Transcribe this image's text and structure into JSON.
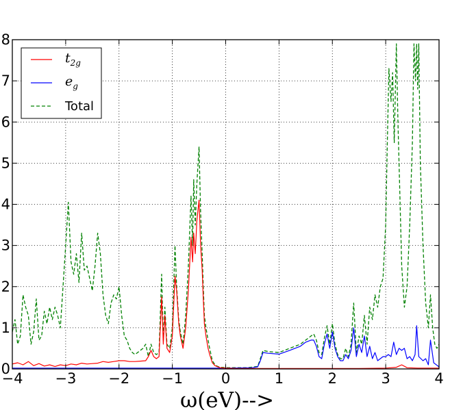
{
  "chart_data": {
    "type": "line",
    "title": "",
    "xlabel": "ω(eV)-->",
    "ylabel": "",
    "xlim": [
      -4,
      4
    ],
    "ylim": [
      0,
      8
    ],
    "xticks": [
      -4,
      -3,
      -2,
      -1,
      0,
      1,
      2,
      3,
      4
    ],
    "yticks": [
      0,
      1,
      2,
      3,
      4,
      5,
      6,
      7,
      8
    ],
    "xtick_labels": [
      "−4",
      "−3",
      "−2",
      "−1",
      "0",
      "1",
      "2",
      "3",
      "4"
    ],
    "ytick_labels": [
      "0",
      "1",
      "2",
      "3",
      "4",
      "5",
      "6",
      "7",
      "8"
    ],
    "grid": true,
    "legend_position": "top-left",
    "series": [
      {
        "name": "t2g",
        "label_main": "t",
        "label_sub": "2g",
        "color": "#ff0000",
        "style": "solid",
        "x": [
          -4.0,
          -3.9,
          -3.8,
          -3.7,
          -3.6,
          -3.5,
          -3.4,
          -3.3,
          -3.2,
          -3.1,
          -3.0,
          -2.9,
          -2.8,
          -2.7,
          -2.6,
          -2.5,
          -2.4,
          -2.3,
          -2.2,
          -2.1,
          -2.0,
          -1.9,
          -1.8,
          -1.7,
          -1.6,
          -1.5,
          -1.45,
          -1.4,
          -1.35,
          -1.3,
          -1.25,
          -1.2,
          -1.17,
          -1.14,
          -1.1,
          -1.05,
          -1.0,
          -0.95,
          -0.92,
          -0.88,
          -0.85,
          -0.8,
          -0.75,
          -0.7,
          -0.65,
          -0.62,
          -0.6,
          -0.57,
          -0.54,
          -0.5,
          -0.47,
          -0.44,
          -0.42,
          -0.4,
          -0.37,
          -0.33,
          -0.3,
          -0.25,
          -0.2,
          -0.15,
          -0.1,
          0.0,
          0.2,
          0.4,
          0.6,
          0.8,
          1.0,
          1.5,
          2.0,
          2.5,
          3.0,
          3.2,
          3.3,
          3.4,
          3.6,
          4.0
        ],
        "y": [
          0.12,
          0.15,
          0.1,
          0.18,
          0.08,
          0.13,
          0.07,
          0.1,
          0.06,
          0.1,
          0.08,
          0.12,
          0.1,
          0.14,
          0.12,
          0.13,
          0.14,
          0.18,
          0.16,
          0.18,
          0.2,
          0.2,
          0.18,
          0.18,
          0.19,
          0.2,
          0.3,
          0.45,
          0.3,
          0.25,
          0.3,
          1.75,
          0.6,
          1.3,
          0.5,
          0.4,
          0.8,
          2.25,
          1.9,
          1.1,
          0.8,
          0.5,
          1.0,
          1.9,
          3.2,
          2.6,
          3.3,
          2.8,
          3.6,
          4.1,
          3.0,
          2.4,
          1.7,
          1.1,
          0.8,
          0.5,
          0.35,
          0.15,
          0.08,
          0.05,
          0.03,
          0.02,
          0.01,
          0.01,
          0.01,
          0.01,
          0.01,
          0.01,
          0.01,
          0.01,
          0.02,
          0.04,
          0.1,
          0.03,
          0.02,
          0.02
        ]
      },
      {
        "name": "eg",
        "label_main": "e",
        "label_sub": "g",
        "color": "#0000ff",
        "style": "solid",
        "x": [
          -4.0,
          -3.0,
          -2.5,
          -2.0,
          -1.5,
          -1.0,
          -0.5,
          0.0,
          0.5,
          0.6,
          0.65,
          0.7,
          0.8,
          1.0,
          1.2,
          1.4,
          1.5,
          1.6,
          1.65,
          1.7,
          1.75,
          1.8,
          1.85,
          1.9,
          1.95,
          2.0,
          2.05,
          2.1,
          2.15,
          2.2,
          2.25,
          2.3,
          2.35,
          2.4,
          2.45,
          2.5,
          2.55,
          2.6,
          2.65,
          2.7,
          2.75,
          2.8,
          2.85,
          2.9,
          2.95,
          3.0,
          3.05,
          3.1,
          3.15,
          3.2,
          3.25,
          3.3,
          3.35,
          3.4,
          3.45,
          3.5,
          3.55,
          3.58,
          3.62,
          3.7,
          3.75,
          3.8,
          3.84,
          3.9,
          4.0
        ],
        "y": [
          0.02,
          0.02,
          0.02,
          0.02,
          0.02,
          0.02,
          0.02,
          0.02,
          0.03,
          0.05,
          0.2,
          0.4,
          0.38,
          0.36,
          0.45,
          0.55,
          0.65,
          0.7,
          0.7,
          0.55,
          0.3,
          0.25,
          0.6,
          0.85,
          0.5,
          0.9,
          0.5,
          0.3,
          0.2,
          0.2,
          0.35,
          0.25,
          0.45,
          1.0,
          0.3,
          0.6,
          0.4,
          0.8,
          0.3,
          0.55,
          0.25,
          0.4,
          0.2,
          0.25,
          0.3,
          0.3,
          0.35,
          0.3,
          0.65,
          0.35,
          0.5,
          0.45,
          0.5,
          0.25,
          0.3,
          0.2,
          0.35,
          1.05,
          0.3,
          0.2,
          0.25,
          0.1,
          0.7,
          0.15,
          0.05
        ]
      },
      {
        "name": "Total",
        "color": "#008000",
        "style": "dashed",
        "x": [
          -4.0,
          -3.95,
          -3.9,
          -3.85,
          -3.8,
          -3.75,
          -3.7,
          -3.65,
          -3.6,
          -3.55,
          -3.5,
          -3.45,
          -3.4,
          -3.35,
          -3.3,
          -3.25,
          -3.2,
          -3.15,
          -3.1,
          -3.05,
          -3.0,
          -2.95,
          -2.9,
          -2.85,
          -2.8,
          -2.75,
          -2.7,
          -2.65,
          -2.6,
          -2.55,
          -2.5,
          -2.45,
          -2.4,
          -2.35,
          -2.3,
          -2.25,
          -2.2,
          -2.15,
          -2.1,
          -2.05,
          -2.0,
          -1.95,
          -1.9,
          -1.85,
          -1.8,
          -1.75,
          -1.7,
          -1.65,
          -1.6,
          -1.55,
          -1.5,
          -1.45,
          -1.4,
          -1.35,
          -1.3,
          -1.25,
          -1.2,
          -1.17,
          -1.14,
          -1.1,
          -1.05,
          -1.0,
          -0.95,
          -0.92,
          -0.88,
          -0.85,
          -0.8,
          -0.75,
          -0.7,
          -0.65,
          -0.62,
          -0.6,
          -0.57,
          -0.54,
          -0.5,
          -0.47,
          -0.44,
          -0.42,
          -0.4,
          -0.37,
          -0.33,
          -0.3,
          -0.25,
          -0.2,
          -0.15,
          -0.1,
          0.0,
          0.2,
          0.4,
          0.6,
          0.65,
          0.7,
          0.8,
          1.0,
          1.2,
          1.4,
          1.5,
          1.6,
          1.65,
          1.7,
          1.75,
          1.8,
          1.85,
          1.9,
          1.95,
          2.0,
          2.05,
          2.1,
          2.15,
          2.2,
          2.25,
          2.3,
          2.35,
          2.4,
          2.45,
          2.5,
          2.55,
          2.6,
          2.65,
          2.7,
          2.75,
          2.8,
          2.85,
          2.9,
          2.95,
          3.0,
          3.03,
          3.06,
          3.1,
          3.13,
          3.16,
          3.2,
          3.23,
          3.26,
          3.3,
          3.35,
          3.4,
          3.45,
          3.5,
          3.53,
          3.56,
          3.58,
          3.6,
          3.62,
          3.65,
          3.7,
          3.75,
          3.8,
          3.84,
          3.88,
          3.92,
          3.96,
          4.0
        ],
        "y": [
          0.9,
          1.2,
          0.6,
          0.8,
          1.8,
          1.5,
          1.3,
          0.6,
          0.9,
          1.7,
          0.7,
          0.8,
          1.4,
          1.1,
          1.5,
          1.2,
          1.5,
          1.3,
          1.0,
          2.0,
          3.0,
          4.05,
          2.6,
          2.3,
          2.8,
          2.1,
          3.3,
          2.4,
          2.5,
          2.2,
          1.9,
          2.5,
          3.3,
          2.8,
          1.8,
          1.3,
          1.1,
          1.6,
          1.8,
          1.7,
          2.0,
          1.3,
          0.8,
          0.7,
          0.5,
          0.4,
          0.35,
          0.4,
          0.45,
          0.5,
          0.6,
          0.3,
          0.6,
          0.4,
          0.35,
          0.4,
          2.3,
          0.7,
          1.5,
          0.6,
          0.5,
          1.0,
          3.0,
          2.0,
          1.2,
          0.9,
          0.6,
          1.3,
          2.5,
          4.2,
          3.0,
          4.6,
          3.5,
          4.5,
          5.4,
          3.8,
          2.8,
          2.0,
          1.3,
          1.0,
          0.7,
          0.5,
          0.2,
          0.1,
          0.06,
          0.04,
          0.03,
          0.03,
          0.03,
          0.06,
          0.25,
          0.45,
          0.42,
          0.4,
          0.5,
          0.6,
          0.7,
          0.8,
          0.85,
          0.7,
          0.4,
          0.35,
          0.75,
          1.05,
          0.6,
          1.1,
          0.6,
          0.35,
          0.25,
          0.25,
          0.5,
          0.3,
          0.6,
          1.6,
          0.4,
          0.8,
          0.6,
          1.3,
          0.6,
          1.5,
          1.2,
          1.8,
          1.5,
          2.0,
          2.2,
          3.5,
          5.5,
          7.3,
          6.5,
          7.2,
          5.5,
          7.9,
          6.0,
          4.5,
          2.5,
          1.5,
          2.0,
          3.5,
          5.5,
          7.9,
          7.0,
          7.9,
          6.8,
          7.9,
          5.0,
          3.0,
          1.6,
          1.0,
          1.8,
          1.0,
          0.6,
          0.5,
          0.6
        ]
      }
    ]
  }
}
